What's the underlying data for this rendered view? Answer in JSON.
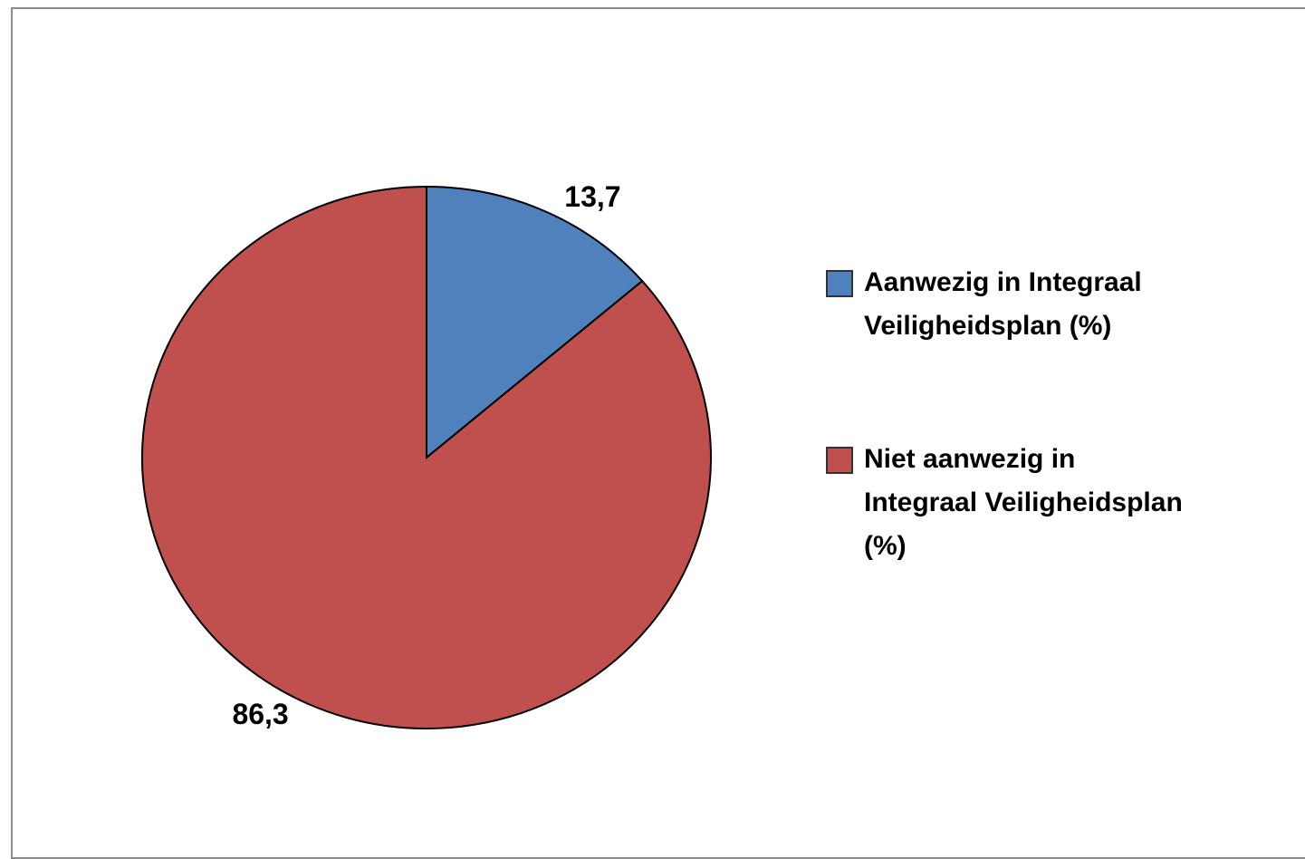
{
  "chart_data": {
    "type": "pie",
    "categories": [
      "Aanwezig in Integraal Veiligheidsplan (%)",
      "Niet aanwezig in Integraal Veiligheidsplan (%)"
    ],
    "values": [
      13.7,
      86.3
    ],
    "value_labels": [
      "13,7",
      "86,3"
    ],
    "colors": [
      "#4f81bd",
      "#c0504d"
    ],
    "legend": "right"
  }
}
